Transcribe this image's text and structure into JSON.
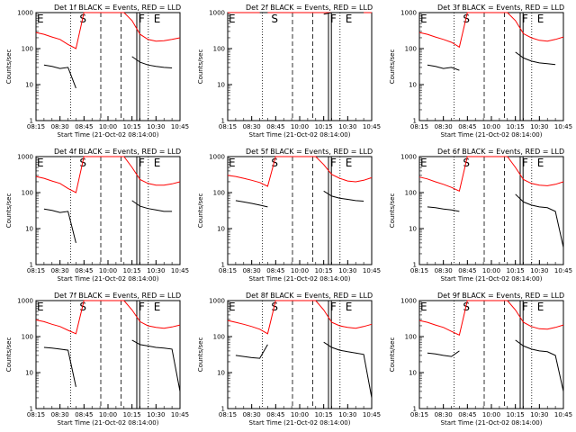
{
  "chart_data": [
    {
      "type": "line",
      "title": "Det 1f BLACK = Events, RED = LLD",
      "xlabel": "Start Time (21-Oct-02 08:14:00)",
      "ylabel": "Counts/sec",
      "yscale": "log",
      "ylim": [
        1,
        1000
      ],
      "yticks": [
        "1",
        "10",
        "100",
        "1000"
      ],
      "xticks": [
        "08:15",
        "08:30",
        "08:45",
        "10:00",
        "10:15",
        "10:30",
        "10:45"
      ],
      "grid": false,
      "markers": [
        {
          "label": "E",
          "pos": "left"
        },
        {
          "label": "S",
          "pos": "s"
        },
        {
          "label": "F",
          "pos": "f"
        },
        {
          "label": "E",
          "pos": "e"
        }
      ],
      "series": [
        {
          "name": "RED = LLD",
          "color": "#ff0000",
          "values": [
            280,
            250,
            210,
            180,
            130,
            100,
            1000,
            1000,
            1000,
            1000,
            1000,
            1000,
            600,
            250,
            180,
            160,
            165,
            180,
            200
          ]
        },
        {
          "name": "BLACK = Events",
          "color": "#000000",
          "values": [
            null,
            35,
            32,
            28,
            30,
            8,
            null,
            null,
            null,
            null,
            null,
            null,
            60,
            42,
            35,
            32,
            30,
            29,
            null
          ]
        }
      ]
    },
    {
      "type": "line",
      "title": "Det 2f BLACK = Events, RED = LLD",
      "xlabel": "Start Time (21-Oct-02 08:14:00)",
      "ylabel": "Counts/sec",
      "yscale": "log",
      "ylim": [
        1,
        1000
      ],
      "yticks": [
        "1",
        "10",
        "100",
        "1000"
      ],
      "xticks": [
        "08:15",
        "08:30",
        "08:45",
        "10:00",
        "10:15",
        "10:30",
        "10:45"
      ],
      "grid": false,
      "markers": [
        {
          "label": "E",
          "pos": "left"
        },
        {
          "label": "S",
          "pos": "s"
        },
        {
          "label": "F",
          "pos": "f"
        },
        {
          "label": "E",
          "pos": "e"
        }
      ],
      "series": [
        {
          "name": "RED = LLD",
          "color": "#ff0000",
          "values": [
            1250,
            1250,
            1250,
            1250,
            1250,
            1300,
            1000,
            1000,
            1000,
            1000,
            1000,
            1000,
            1200,
            1250,
            1250,
            1250,
            1250,
            1250,
            1300
          ]
        },
        {
          "name": "BLACK = Events",
          "color": "#000000",
          "values": [
            null,
            null,
            null,
            null,
            1200,
            1100,
            null,
            null,
            null,
            null,
            null,
            null,
            900,
            1200,
            1200,
            1200,
            1200,
            1200,
            null
          ]
        }
      ]
    },
    {
      "type": "line",
      "title": "Det 3f BLACK = Events, RED = LLD",
      "xlabel": "Start Time (21-Oct-02 08:14:00)",
      "ylabel": "Counts/sec",
      "yscale": "log",
      "ylim": [
        1,
        1000
      ],
      "yticks": [
        "1",
        "10",
        "100",
        "1000"
      ],
      "xticks": [
        "08:15",
        "08:30",
        "08:45",
        "10:00",
        "10:15",
        "10:30",
        "10:45"
      ],
      "grid": false,
      "markers": [
        {
          "label": "E",
          "pos": "left"
        },
        {
          "label": "S",
          "pos": "s"
        },
        {
          "label": "F",
          "pos": "f"
        },
        {
          "label": "E",
          "pos": "e"
        }
      ],
      "series": [
        {
          "name": "RED = LLD",
          "color": "#ff0000",
          "values": [
            280,
            250,
            210,
            180,
            150,
            110,
            1000,
            1000,
            1000,
            1000,
            1000,
            1000,
            600,
            260,
            200,
            170,
            160,
            180,
            210
          ]
        },
        {
          "name": "BLACK = Events",
          "color": "#000000",
          "values": [
            null,
            35,
            32,
            28,
            30,
            25,
            null,
            null,
            null,
            null,
            null,
            null,
            80,
            55,
            45,
            40,
            38,
            36,
            null
          ]
        }
      ]
    },
    {
      "type": "line",
      "title": "Det 4f BLACK = Events, RED = LLD",
      "xlabel": "Start Time (21-Oct-02 08:14:00)",
      "ylabel": "Counts/sec",
      "yscale": "log",
      "ylim": [
        1,
        1000
      ],
      "yticks": [
        "1",
        "10",
        "100",
        "1000"
      ],
      "xticks": [
        "08:15",
        "08:30",
        "08:45",
        "10:00",
        "10:15",
        "10:30",
        "10:45"
      ],
      "grid": false,
      "markers": [
        {
          "label": "E",
          "pos": "left"
        },
        {
          "label": "S",
          "pos": "s"
        },
        {
          "label": "F",
          "pos": "f"
        },
        {
          "label": "E",
          "pos": "e"
        }
      ],
      "series": [
        {
          "name": "RED = LLD",
          "color": "#ff0000",
          "values": [
            280,
            250,
            210,
            180,
            130,
            100,
            1000,
            1000,
            1000,
            1000,
            1000,
            1000,
            500,
            230,
            180,
            160,
            160,
            175,
            200
          ]
        },
        {
          "name": "BLACK = Events",
          "color": "#000000",
          "values": [
            null,
            35,
            32,
            28,
            30,
            4,
            null,
            null,
            null,
            null,
            null,
            null,
            60,
            42,
            36,
            33,
            30,
            30,
            null
          ]
        }
      ]
    },
    {
      "type": "line",
      "title": "Det 5f BLACK = Events, RED = LLD",
      "xlabel": "Start Time (21-Oct-02 08:14:00)",
      "ylabel": "Counts/sec",
      "yscale": "log",
      "ylim": [
        1,
        1000
      ],
      "yticks": [
        "1",
        "10",
        "100",
        "1000"
      ],
      "xticks": [
        "08:15",
        "08:30",
        "08:45",
        "10:00",
        "10:15",
        "10:30",
        "10:45"
      ],
      "grid": false,
      "markers": [
        {
          "label": "E",
          "pos": "left"
        },
        {
          "label": "S",
          "pos": "s"
        },
        {
          "label": "F",
          "pos": "f"
        },
        {
          "label": "E",
          "pos": "e"
        }
      ],
      "series": [
        {
          "name": "RED = LLD",
          "color": "#ff0000",
          "values": [
            300,
            280,
            250,
            220,
            190,
            150,
            1000,
            1000,
            1000,
            1000,
            1000,
            1000,
            600,
            320,
            250,
            210,
            200,
            220,
            260
          ]
        },
        {
          "name": "BLACK = Events",
          "color": "#000000",
          "values": [
            null,
            60,
            55,
            50,
            45,
            40,
            null,
            null,
            null,
            null,
            null,
            null,
            110,
            80,
            70,
            65,
            60,
            58,
            null
          ]
        }
      ]
    },
    {
      "type": "line",
      "title": "Det 6f BLACK = Events, RED = LLD",
      "xlabel": "Start Time (21-Oct-02 08:14:00)",
      "ylabel": "Counts/sec",
      "yscale": "log",
      "ylim": [
        1,
        1000
      ],
      "yticks": [
        "1",
        "10",
        "100",
        "1000"
      ],
      "xticks": [
        "08:15",
        "08:30",
        "08:45",
        "10:00",
        "10:15",
        "10:30",
        "10:45"
      ],
      "grid": false,
      "markers": [
        {
          "label": "E",
          "pos": "left"
        },
        {
          "label": "S",
          "pos": "s"
        },
        {
          "label": "F",
          "pos": "f"
        },
        {
          "label": "E",
          "pos": "e"
        }
      ],
      "series": [
        {
          "name": "RED = LLD",
          "color": "#ff0000",
          "values": [
            270,
            240,
            200,
            170,
            140,
            110,
            1000,
            1000,
            1000,
            1000,
            1000,
            1000,
            500,
            230,
            180,
            160,
            155,
            170,
            200
          ]
        },
        {
          "name": "BLACK = Events",
          "color": "#000000",
          "values": [
            null,
            40,
            38,
            35,
            33,
            30,
            null,
            null,
            null,
            null,
            null,
            null,
            90,
            55,
            45,
            40,
            38,
            30,
            3
          ]
        }
      ]
    },
    {
      "type": "line",
      "title": "Det 7f BLACK = Events, RED = LLD",
      "xlabel": "Start Time (21-Oct-02 08:14:00)",
      "ylabel": "Counts/sec",
      "yscale": "log",
      "ylim": [
        1,
        1000
      ],
      "yticks": [
        "1",
        "10",
        "100",
        "1000"
      ],
      "xticks": [
        "08:15",
        "08:30",
        "08:45",
        "10:00",
        "10:15",
        "10:30",
        "10:45"
      ],
      "grid": false,
      "markers": [
        {
          "label": "E",
          "pos": "left"
        },
        {
          "label": "S",
          "pos": "s"
        },
        {
          "label": "F",
          "pos": "f"
        },
        {
          "label": "E",
          "pos": "e"
        }
      ],
      "series": [
        {
          "name": "RED = LLD",
          "color": "#ff0000",
          "values": [
            290,
            260,
            220,
            190,
            150,
            120,
            1000,
            1000,
            1000,
            1000,
            1000,
            1000,
            550,
            260,
            200,
            180,
            170,
            185,
            210
          ]
        },
        {
          "name": "BLACK = Events",
          "color": "#000000",
          "values": [
            null,
            50,
            48,
            45,
            42,
            4,
            null,
            null,
            null,
            null,
            null,
            null,
            80,
            60,
            55,
            50,
            48,
            45,
            3
          ]
        }
      ]
    },
    {
      "type": "line",
      "title": "Det 8f BLACK = Events, RED = LLD",
      "xlabel": "Start Time (21-Oct-02 08:14:00)",
      "ylabel": "Counts/sec",
      "yscale": "log",
      "ylim": [
        1,
        1000
      ],
      "yticks": [
        "1",
        "10",
        "100",
        "1000"
      ],
      "xticks": [
        "08:15",
        "08:30",
        "08:45",
        "10:00",
        "10:15",
        "10:30",
        "10:45"
      ],
      "grid": false,
      "markers": [
        {
          "label": "E",
          "pos": "left"
        },
        {
          "label": "S",
          "pos": "s"
        },
        {
          "label": "F",
          "pos": "f"
        },
        {
          "label": "E",
          "pos": "e"
        }
      ],
      "series": [
        {
          "name": "RED = LLD",
          "color": "#ff0000",
          "values": [
            280,
            250,
            220,
            190,
            160,
            120,
            1000,
            1000,
            1000,
            1000,
            1000,
            1000,
            550,
            250,
            200,
            180,
            170,
            190,
            220
          ]
        },
        {
          "name": "BLACK = Events",
          "color": "#000000",
          "values": [
            null,
            30,
            28,
            26,
            25,
            60,
            null,
            null,
            null,
            null,
            null,
            null,
            70,
            50,
            42,
            38,
            35,
            32,
            2
          ]
        }
      ]
    },
    {
      "type": "line",
      "title": "Det 9f BLACK = Events, RED = LLD",
      "xlabel": "Start Time (21-Oct-02 08:14:00)",
      "ylabel": "Counts/sec",
      "yscale": "log",
      "ylim": [
        1,
        1000
      ],
      "yticks": [
        "1",
        "10",
        "100",
        "1000"
      ],
      "xticks": [
        "08:15",
        "08:30",
        "08:45",
        "10:00",
        "10:15",
        "10:30",
        "10:45"
      ],
      "grid": false,
      "markers": [
        {
          "label": "E",
          "pos": "left"
        },
        {
          "label": "S",
          "pos": "s"
        },
        {
          "label": "F",
          "pos": "f"
        },
        {
          "label": "E",
          "pos": "e"
        }
      ],
      "series": [
        {
          "name": "RED = LLD",
          "color": "#ff0000",
          "values": [
            280,
            250,
            210,
            180,
            140,
            110,
            1000,
            1000,
            1000,
            1000,
            1000,
            1000,
            550,
            250,
            190,
            165,
            160,
            180,
            210
          ]
        },
        {
          "name": "BLACK = Events",
          "color": "#000000",
          "values": [
            null,
            35,
            33,
            30,
            28,
            40,
            null,
            null,
            null,
            null,
            null,
            null,
            80,
            55,
            45,
            40,
            38,
            30,
            3
          ]
        }
      ]
    }
  ]
}
